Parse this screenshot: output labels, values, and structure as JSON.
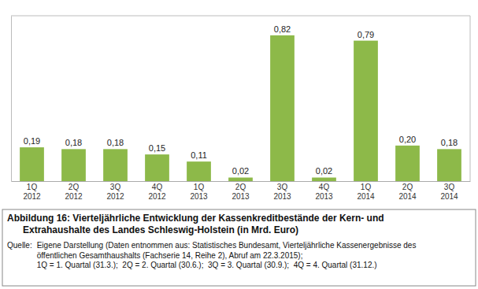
{
  "chart_data": {
    "type": "bar",
    "title": "Abbildung 16: Vierteljährliche Entwicklung der Kassenkreditbestände der Kern- und\nExtrahaushalte des Landes Schleswig-Holstein (in Mrd. Euro)",
    "annotations": [
      "Quelle:",
      "Eigene Darstellung (Daten entnommen aus: Statistisches Bundesamt, Vierteljährliche Kassenergebnisse des",
      "öffentlichen Gesamthaushalts (Fachserie 14, Reihe 2), Abruf am 22.3.2015);",
      "1Q = 1. Quartal (31.3.);  2Q = 2. Quartal (30.6.);  3Q = 3. Quartal (30.9.);  4Q = 4. Quartal (31.12.)"
    ],
    "categories": [
      "1Q\n2012",
      "2Q\n2012",
      "3Q\n2012",
      "4Q\n2012",
      "1Q\n2013",
      "2Q\n2013",
      "3Q\n2013",
      "4Q\n2013",
      "1Q\n2014",
      "2Q\n2014",
      "3Q\n2014"
    ],
    "values": [
      0.19,
      0.18,
      0.18,
      0.15,
      0.11,
      0.02,
      0.82,
      0.02,
      0.79,
      0.2,
      0.18
    ],
    "value_labels": [
      "0,19",
      "0,18",
      "0,18",
      "0,15",
      "0,11",
      "0,02",
      "0,82",
      "0,02",
      "0,79",
      "0,20",
      "0,18"
    ],
    "color": "#8DB949",
    "ylim": [
      0,
      0.93
    ],
    "data_labels": true,
    "tick_labels": "x",
    "grid": false
  }
}
